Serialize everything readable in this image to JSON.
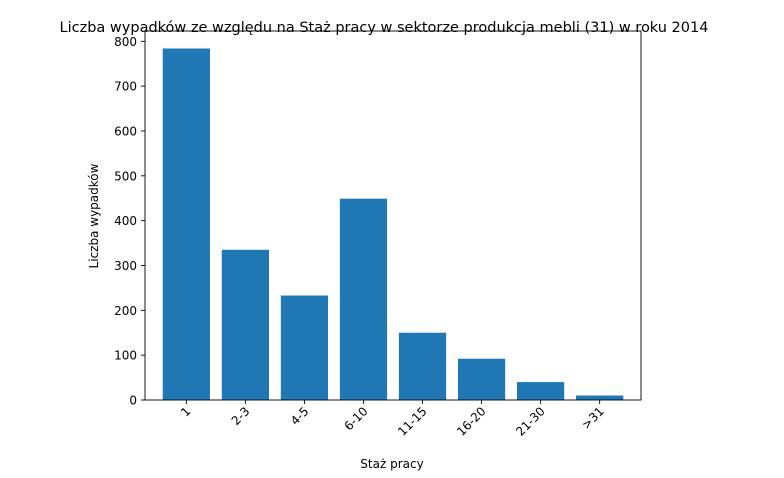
{
  "chart_data": {
    "type": "bar",
    "title": "Liczba wypadków ze względu na Staż pracy w sektorze produkcja mebli  (31)   w roku 2014",
    "xlabel": "Staż pracy",
    "ylabel": "Liczba wypadków",
    "categories": [
      "1",
      "2-3",
      "4-5",
      "6-10",
      "11-15",
      "16-20",
      "21-30",
      ">31"
    ],
    "values": [
      784,
      335,
      233,
      449,
      150,
      92,
      40,
      10
    ],
    "yticks": [
      0,
      100,
      200,
      300,
      400,
      500,
      600,
      700,
      800
    ],
    "ylim": [
      0,
      823
    ],
    "grid": false,
    "bar_color": "#1f77b4"
  }
}
